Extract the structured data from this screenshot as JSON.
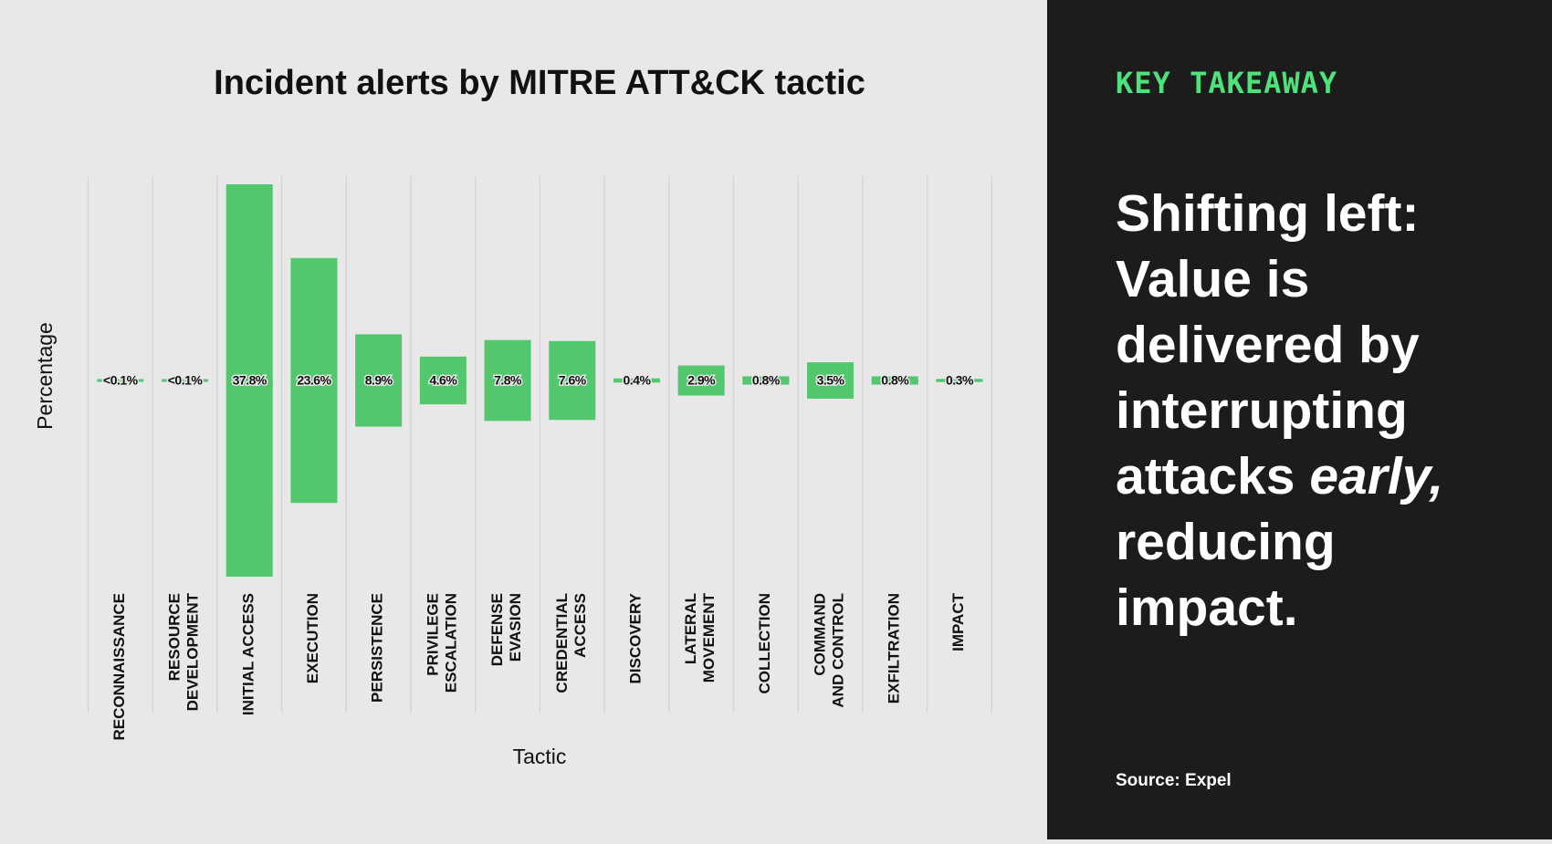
{
  "chart_data": {
    "type": "bar",
    "title": "Incident alerts by MITRE ATT&CK tactic",
    "x_label": "Tactic",
    "y_label": "Percentage",
    "categories": [
      [
        "RECONNAISSANCE"
      ],
      [
        "RESOURCE",
        "DEVELOPMENT"
      ],
      [
        "INITIAL ACCESS"
      ],
      [
        "EXECUTION"
      ],
      [
        "PERSISTENCE"
      ],
      [
        "PRIVILEGE",
        "ESCALATION"
      ],
      [
        "DEFENSE",
        "EVASION"
      ],
      [
        "CREDENTIAL",
        "ACCESS"
      ],
      [
        "DISCOVERY"
      ],
      [
        "LATERAL",
        "MOVEMENT"
      ],
      [
        "COLLECTION"
      ],
      [
        "COMMAND",
        "AND CONTROL"
      ],
      [
        "EXFILTRATION"
      ],
      [
        "IMPACT"
      ]
    ],
    "values": [
      0.05,
      0.05,
      37.8,
      23.6,
      8.9,
      4.6,
      7.8,
      7.6,
      0.4,
      2.9,
      0.8,
      3.5,
      0.8,
      0.3
    ],
    "value_labels": [
      "<0.1%",
      "<0.1%",
      "37.8%",
      "23.6%",
      "8.9%",
      "4.6%",
      "7.8%",
      "7.6%",
      "0.4%",
      "2.9%",
      "0.8%",
      "3.5%",
      "0.8%",
      "0.3%"
    ],
    "color": "#52c76d"
  },
  "takeaway": {
    "label": "KEY TAKEAWAY",
    "lines": [
      [
        {
          "text": "Shifting left:"
        }
      ],
      [
        {
          "text": "Value is"
        }
      ],
      [
        {
          "text": "delivered by"
        }
      ],
      [
        {
          "text": "interrupting"
        }
      ],
      [
        {
          "text": "attacks "
        },
        {
          "text": "early,",
          "italic": true
        }
      ],
      [
        {
          "text": "reducing"
        }
      ],
      [
        {
          "text": "impact."
        }
      ]
    ],
    "source": "Source: Expel"
  }
}
